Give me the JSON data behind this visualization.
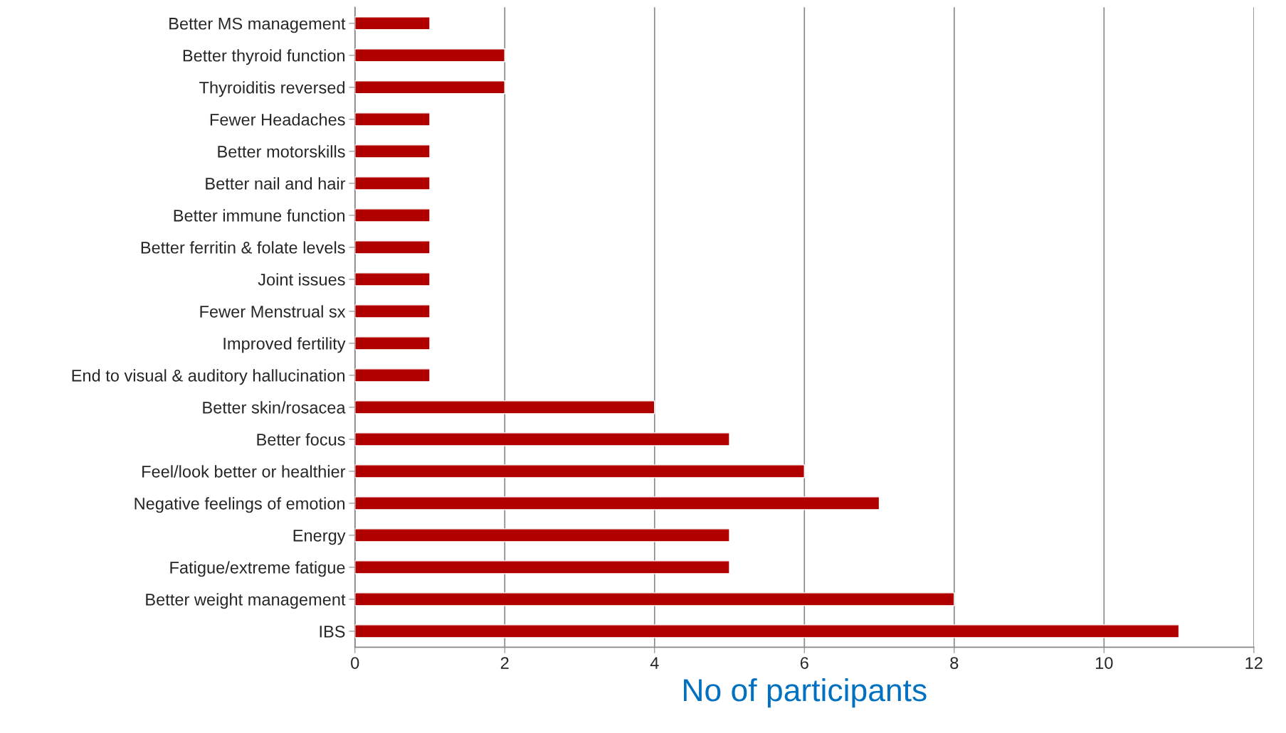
{
  "chart_data": {
    "type": "bar",
    "orientation": "horizontal",
    "xlabel": "No of participants",
    "categories": [
      "Better MS management",
      "Better thyroid function",
      "Thyroiditis reversed",
      "Fewer Headaches",
      "Better motorskills",
      "Better nail and hair",
      "Better immune function",
      "Better ferritin & folate levels",
      "Joint issues",
      "Fewer Menstrual sx",
      "Improved fertility",
      "End to visual & auditory hallucination",
      "Better skin/rosacea",
      "Better focus",
      "Feel/look better or healthier",
      "Negative feelings of emotion",
      "Energy",
      "Fatigue/extreme fatigue",
      "Better weight management",
      "IBS"
    ],
    "values": [
      1,
      2,
      2,
      1,
      1,
      1,
      1,
      1,
      1,
      1,
      1,
      1,
      4,
      5,
      6,
      7,
      5,
      5,
      8,
      11
    ],
    "color": "#b00000",
    "xlim": [
      0,
      12
    ],
    "xticks": [
      0,
      2,
      4,
      6,
      8,
      10,
      12
    ],
    "grid": "x",
    "legend": false
  }
}
